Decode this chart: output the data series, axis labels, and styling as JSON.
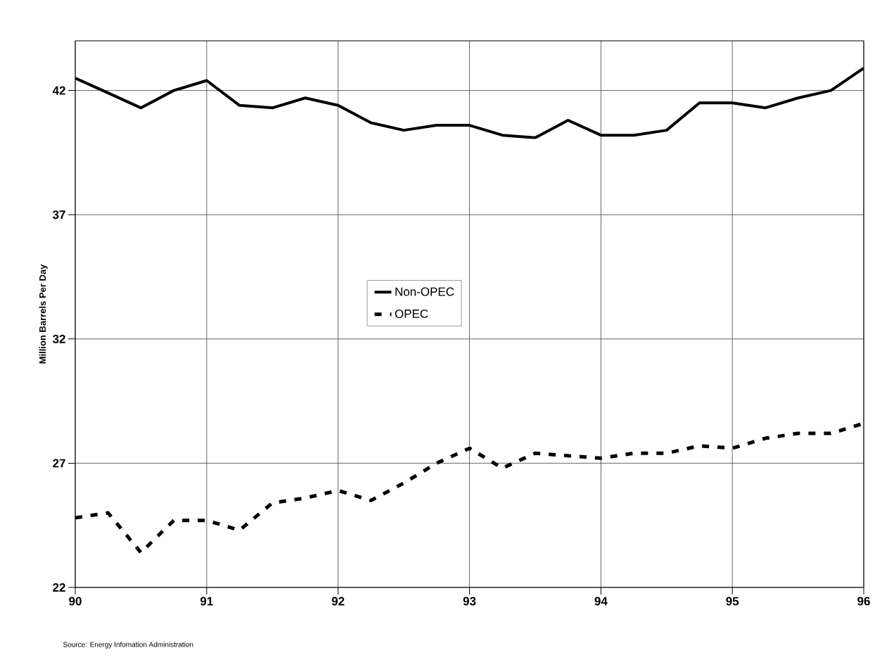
{
  "chart_data": {
    "type": "line",
    "ylabel": "Million Barrels Per Day",
    "x": [
      90,
      90.25,
      90.5,
      90.75,
      91,
      91.25,
      91.5,
      91.75,
      92,
      92.25,
      92.5,
      92.75,
      93,
      93.25,
      93.5,
      93.75,
      94,
      94.25,
      94.5,
      94.75,
      95,
      95.25,
      95.5,
      95.75,
      96
    ],
    "series": [
      {
        "name": "Non-OPEC",
        "color": "#000000",
        "line_style": "solid",
        "values": [
          42.5,
          41.9,
          41.3,
          42.0,
          42.4,
          41.4,
          41.3,
          41.7,
          41.4,
          40.7,
          40.4,
          40.6,
          40.6,
          40.2,
          40.1,
          40.8,
          40.2,
          40.2,
          40.4,
          41.5,
          41.5,
          41.3,
          41.7,
          42.0,
          42.9
        ]
      },
      {
        "name": "OPEC",
        "color": "#000000",
        "line_style": "dashed",
        "values": [
          24.8,
          25.0,
          23.4,
          24.7,
          24.7,
          24.3,
          25.4,
          25.6,
          25.9,
          25.5,
          26.2,
          27.0,
          27.6,
          26.8,
          27.4,
          27.3,
          27.2,
          27.4,
          27.4,
          27.7,
          27.6,
          28.0,
          28.2,
          28.2,
          28.6
        ]
      }
    ],
    "xlim": [
      90,
      96
    ],
    "ylim": [
      22,
      44
    ],
    "xticks": [
      {
        "value": 90,
        "label": "90"
      },
      {
        "value": 91,
        "label": "91"
      },
      {
        "value": 92,
        "label": "92"
      },
      {
        "value": 93,
        "label": "93"
      },
      {
        "value": 94,
        "label": "94"
      },
      {
        "value": 95,
        "label": "95"
      },
      {
        "value": 96,
        "label": "96"
      }
    ],
    "yticks": [
      22,
      27,
      32,
      37,
      42
    ],
    "grid": true,
    "legend": "center",
    "marker": "none",
    "annotations": [
      "Source:  Energy Infomation Administration"
    ]
  }
}
